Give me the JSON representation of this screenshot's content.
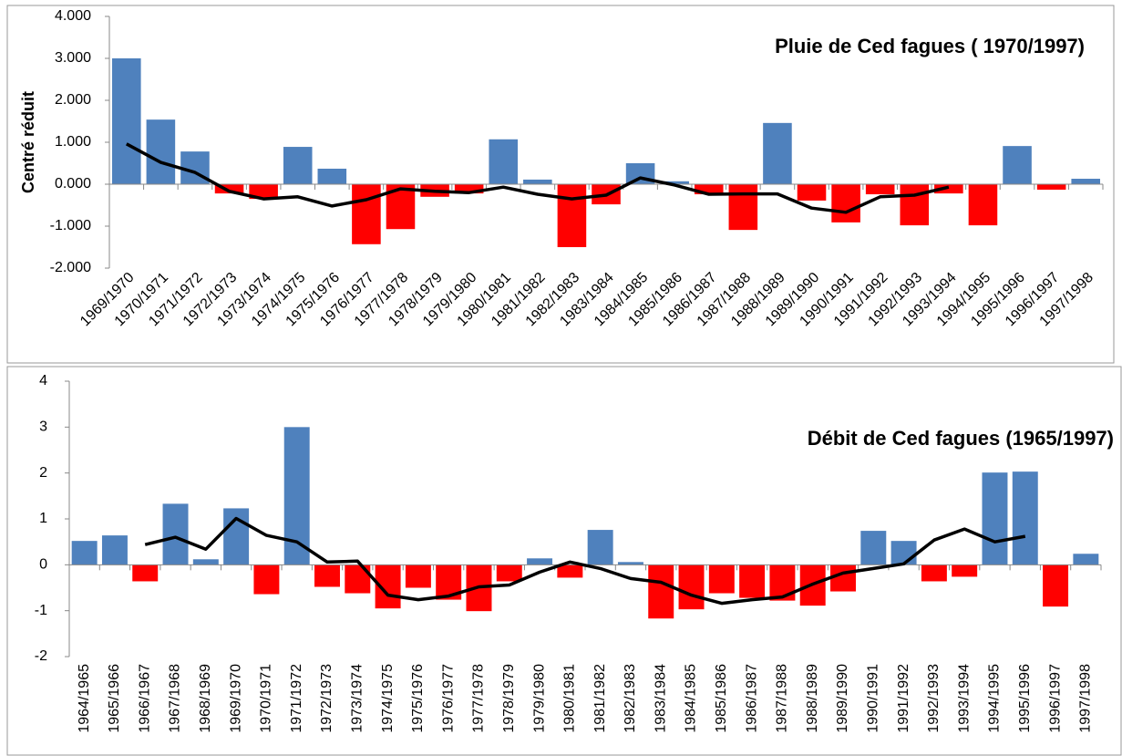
{
  "chart_data": [
    {
      "type": "bar",
      "title": "Pluie de Ced fagues ( 1970/1997)",
      "ylabel": "Centré réduit",
      "categories": [
        "1969/1970",
        "1970/1971",
        "1971/1972",
        "1972/1973",
        "1973/1974",
        "1974/1975",
        "1975/1976",
        "1976/1977",
        "1977/1978",
        "1978/1979",
        "1979/1980",
        "1980/1981",
        "1981/1982",
        "1982/1983",
        "1983/1984",
        "1984/1985",
        "1985/1986",
        "1986/1987",
        "1987/1988",
        "1988/1989",
        "1989/1990",
        "1990/1991",
        "1991/1992",
        "1992/1993",
        "1993/1994",
        "1994/1995",
        "1995/1996",
        "1996/1997",
        "1997/1998"
      ],
      "values": [
        3.0,
        1.54,
        0.78,
        -0.22,
        -0.35,
        0.89,
        0.37,
        -1.43,
        -1.07,
        -0.3,
        -0.22,
        1.07,
        0.11,
        -1.5,
        -0.48,
        0.5,
        0.07,
        -0.24,
        -1.09,
        1.46,
        -0.39,
        -0.91,
        -0.24,
        -0.98,
        -0.22,
        -0.98,
        0.91,
        -0.13,
        0.13
      ],
      "color": "#4f81bd",
      "negative_color": "#ff0000",
      "line": {
        "type": "line",
        "color": "#000000",
        "values": [
          0.96,
          0.52,
          0.28,
          -0.17,
          -0.35,
          -0.3,
          -0.52,
          -0.37,
          -0.11,
          -0.17,
          -0.2,
          -0.07,
          -0.24,
          -0.35,
          -0.26,
          0.15,
          -0.02,
          -0.24,
          -0.23,
          -0.23,
          -0.57,
          -0.67,
          -0.3,
          -0.26,
          -0.07,
          null,
          null,
          null,
          null
        ]
      },
      "ylim": [
        -2,
        4
      ],
      "yticks": [
        {
          "value": -2,
          "label": "-2.000"
        },
        {
          "value": -1,
          "label": "-1.000"
        },
        {
          "value": 0,
          "label": "0.000"
        },
        {
          "value": 1,
          "label": "1.000"
        },
        {
          "value": 2,
          "label": "2.000"
        },
        {
          "value": 3,
          "label": "3.000"
        },
        {
          "value": 4,
          "label": "4.000"
        }
      ],
      "xtick_rotation": -45
    },
    {
      "type": "bar",
      "title": "Débit de Ced fagues (1965/1997)",
      "categories": [
        "1964/1965",
        "1965/1966",
        "1966/1967",
        "1967/1968",
        "1968/1969",
        "1969/1970",
        "1970/1971",
        "1971/1972",
        "1972/1973",
        "1973/1974",
        "1974/1975",
        "1975/1976",
        "1976/1977",
        "1977/1978",
        "1978/1979",
        "1979/1980",
        "1980/1981",
        "1981/1982",
        "1982/1983",
        "1983/1984",
        "1984/1985",
        "1985/1986",
        "1986/1987",
        "1987/1988",
        "1988/1989",
        "1989/1990",
        "1990/1991",
        "1991/1992",
        "1992/1993",
        "1993/1994",
        "1994/1995",
        "1995/1996",
        "1996/1997",
        "1997/1998"
      ],
      "values": [
        0.52,
        0.64,
        -0.36,
        1.33,
        0.12,
        1.23,
        -0.64,
        3.0,
        -0.48,
        -0.62,
        -0.95,
        -0.5,
        -0.76,
        -1.01,
        -0.36,
        0.14,
        -0.28,
        0.76,
        0.06,
        -1.17,
        -0.97,
        -0.62,
        -0.72,
        -0.78,
        -0.89,
        -0.58,
        0.74,
        0.52,
        -0.36,
        -0.26,
        2.01,
        2.03,
        -0.91,
        0.24
      ],
      "color": "#4f81bd",
      "negative_color": "#ff0000",
      "line": {
        "type": "line",
        "color": "#000000",
        "values": [
          null,
          null,
          0.44,
          0.6,
          0.34,
          1.01,
          0.64,
          0.5,
          0.06,
          0.08,
          -0.66,
          -0.76,
          -0.68,
          -0.48,
          -0.44,
          -0.16,
          0.06,
          -0.08,
          -0.3,
          -0.38,
          -0.66,
          -0.84,
          -0.76,
          -0.7,
          -0.42,
          -0.18,
          -0.08,
          0.02,
          0.54,
          0.78,
          0.5,
          0.62,
          null,
          null
        ]
      },
      "ylim": [
        -2,
        4
      ],
      "yticks": [
        -2,
        -1,
        0,
        1,
        2,
        3,
        4
      ],
      "xtick_rotation": -90
    }
  ]
}
